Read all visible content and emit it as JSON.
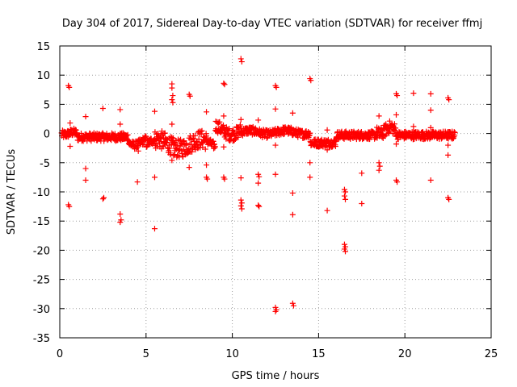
{
  "chart_data": {
    "type": "scatter",
    "title": "Day 304 of 2017, Sidereal Day-to-day VTEC variation (SDTVAR) for receiver ffmj",
    "xlabel": "GPS time / hours",
    "ylabel": "SDTVAR / TECUs",
    "xlim": [
      0,
      25
    ],
    "ylim": [
      -35,
      15
    ],
    "xticks": [
      0,
      5,
      10,
      15,
      20,
      25
    ],
    "yticks": [
      -35,
      -30,
      -25,
      -20,
      -15,
      -10,
      -5,
      0,
      5,
      10,
      15
    ],
    "grid": true,
    "marker": "plus",
    "color": "#ff0000",
    "band": {
      "note": "dense cluster of observations near zero",
      "x_start": 0.1,
      "x_end": 22.9,
      "step_hours": 0.02
    },
    "outliers": [
      {
        "x": 0.5,
        "y": 8.2
      },
      {
        "x": 0.55,
        "y": 7.9
      },
      {
        "x": 0.5,
        "y": -12.2
      },
      {
        "x": 0.55,
        "y": -12.5
      },
      {
        "x": 0.6,
        "y": 1.8
      },
      {
        "x": 0.6,
        "y": -2.2
      },
      {
        "x": 1.5,
        "y": 2.9
      },
      {
        "x": 1.5,
        "y": -6.0
      },
      {
        "x": 1.5,
        "y": -8.0
      },
      {
        "x": 2.5,
        "y": 4.3
      },
      {
        "x": 2.5,
        "y": -11.2
      },
      {
        "x": 2.55,
        "y": -11.0
      },
      {
        "x": 3.5,
        "y": 4.1
      },
      {
        "x": 3.5,
        "y": 1.6
      },
      {
        "x": 3.5,
        "y": -13.8
      },
      {
        "x": 3.5,
        "y": -15.2
      },
      {
        "x": 3.55,
        "y": -14.8
      },
      {
        "x": 4.5,
        "y": -8.3
      },
      {
        "x": 4.55,
        "y": -3.0
      },
      {
        "x": 5.5,
        "y": 3.8
      },
      {
        "x": 5.5,
        "y": -7.5
      },
      {
        "x": 5.5,
        "y": -16.3
      },
      {
        "x": 6.5,
        "y": 8.5
      },
      {
        "x": 6.5,
        "y": 7.8
      },
      {
        "x": 6.55,
        "y": 6.5
      },
      {
        "x": 6.5,
        "y": 5.8
      },
      {
        "x": 6.55,
        "y": 5.3
      },
      {
        "x": 6.5,
        "y": 1.6
      },
      {
        "x": 6.5,
        "y": -4.6
      },
      {
        "x": 6.6,
        "y": -3.8
      },
      {
        "x": 7.5,
        "y": 6.7
      },
      {
        "x": 7.55,
        "y": 6.4
      },
      {
        "x": 7.5,
        "y": -5.8
      },
      {
        "x": 8.5,
        "y": 3.7
      },
      {
        "x": 8.5,
        "y": -5.4
      },
      {
        "x": 8.5,
        "y": -7.5
      },
      {
        "x": 8.55,
        "y": -7.8
      },
      {
        "x": 9.5,
        "y": 8.6
      },
      {
        "x": 9.55,
        "y": 8.4
      },
      {
        "x": 9.5,
        "y": 3.0
      },
      {
        "x": 9.5,
        "y": -2.3
      },
      {
        "x": 9.5,
        "y": -7.5
      },
      {
        "x": 9.55,
        "y": -7.8
      },
      {
        "x": 10.5,
        "y": 12.8
      },
      {
        "x": 10.55,
        "y": 12.3
      },
      {
        "x": 10.5,
        "y": 2.4
      },
      {
        "x": 10.5,
        "y": -7.6
      },
      {
        "x": 10.5,
        "y": -11.4
      },
      {
        "x": 10.55,
        "y": -11.9
      },
      {
        "x": 10.5,
        "y": -12.4
      },
      {
        "x": 10.55,
        "y": -12.9
      },
      {
        "x": 11.5,
        "y": 2.3
      },
      {
        "x": 11.5,
        "y": -7.0
      },
      {
        "x": 11.55,
        "y": -7.4
      },
      {
        "x": 11.5,
        "y": -8.5
      },
      {
        "x": 11.5,
        "y": -12.3
      },
      {
        "x": 11.55,
        "y": -12.5
      },
      {
        "x": 12.5,
        "y": 8.2
      },
      {
        "x": 12.55,
        "y": 7.9
      },
      {
        "x": 12.5,
        "y": 4.2
      },
      {
        "x": 12.5,
        "y": -2.0
      },
      {
        "x": 12.5,
        "y": -7.0
      },
      {
        "x": 12.5,
        "y": -29.8
      },
      {
        "x": 12.55,
        "y": -30.2
      },
      {
        "x": 12.5,
        "y": -30.5
      },
      {
        "x": 13.5,
        "y": 3.5
      },
      {
        "x": 13.5,
        "y": -10.2
      },
      {
        "x": 13.5,
        "y": -13.9
      },
      {
        "x": 13.5,
        "y": -29.1
      },
      {
        "x": 13.55,
        "y": -29.5
      },
      {
        "x": 14.5,
        "y": 9.4
      },
      {
        "x": 14.55,
        "y": 9.1
      },
      {
        "x": 14.5,
        "y": -5.0
      },
      {
        "x": 14.5,
        "y": -7.5
      },
      {
        "x": 15.5,
        "y": 0.6
      },
      {
        "x": 15.5,
        "y": -2.8
      },
      {
        "x": 15.5,
        "y": -13.2
      },
      {
        "x": 16.5,
        "y": -9.6
      },
      {
        "x": 16.55,
        "y": -10.0
      },
      {
        "x": 16.5,
        "y": -10.7
      },
      {
        "x": 16.55,
        "y": -11.3
      },
      {
        "x": 16.5,
        "y": -19.0
      },
      {
        "x": 16.55,
        "y": -19.4
      },
      {
        "x": 16.5,
        "y": -19.8
      },
      {
        "x": 16.55,
        "y": -20.2
      },
      {
        "x": 17.5,
        "y": -6.8
      },
      {
        "x": 17.5,
        "y": -12.0
      },
      {
        "x": 18.5,
        "y": 3.0
      },
      {
        "x": 18.5,
        "y": -5.0
      },
      {
        "x": 18.55,
        "y": -5.6
      },
      {
        "x": 18.5,
        "y": -6.3
      },
      {
        "x": 19.5,
        "y": 6.8
      },
      {
        "x": 19.55,
        "y": 6.5
      },
      {
        "x": 19.5,
        "y": 3.2
      },
      {
        "x": 19.5,
        "y": -1.8
      },
      {
        "x": 19.5,
        "y": -8.0
      },
      {
        "x": 19.55,
        "y": -8.3
      },
      {
        "x": 20.5,
        "y": 6.9
      },
      {
        "x": 20.5,
        "y": 1.2
      },
      {
        "x": 21.5,
        "y": 6.8
      },
      {
        "x": 21.5,
        "y": 4.0
      },
      {
        "x": 21.5,
        "y": 1.0
      },
      {
        "x": 21.5,
        "y": -8.0
      },
      {
        "x": 22.5,
        "y": 6.1
      },
      {
        "x": 22.55,
        "y": 5.8
      },
      {
        "x": 22.5,
        "y": -2.0
      },
      {
        "x": 22.5,
        "y": -3.7
      },
      {
        "x": 22.5,
        "y": -11.0
      },
      {
        "x": 22.55,
        "y": -11.3
      }
    ]
  }
}
